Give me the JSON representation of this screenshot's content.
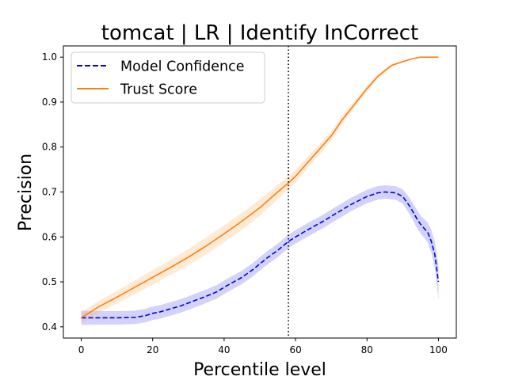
{
  "chart_data": {
    "type": "line",
    "title": "tomcat | LR | Identify InCorrect",
    "xlabel": "Percentile level",
    "ylabel": "Precision",
    "xlim": [
      -5,
      105
    ],
    "ylim": [
      0.375,
      1.025
    ],
    "xticks": [
      0,
      20,
      40,
      60,
      80,
      100
    ],
    "yticks": [
      0.4,
      0.5,
      0.6,
      0.7,
      0.8,
      0.9,
      1.0
    ],
    "xtick_labels": [
      "0",
      "20",
      "40",
      "60",
      "80",
      "100"
    ],
    "ytick_labels": [
      "0.4",
      "0.5",
      "0.6",
      "0.7",
      "0.8",
      "0.9",
      "1.0"
    ],
    "legend_position": "top-left",
    "vline": {
      "x": 58,
      "style": "dotted",
      "color": "#000000"
    },
    "series": [
      {
        "name": "Model Confidence",
        "color": "#0000ee",
        "band_color": "#6b6bee",
        "style": "dashed",
        "x": [
          0,
          5,
          10,
          15,
          18,
          20,
          22,
          25,
          28,
          30,
          33,
          35,
          38,
          40,
          42,
          45,
          48,
          50,
          52,
          55,
          58,
          60,
          63,
          65,
          68,
          70,
          73,
          75,
          78,
          80,
          83,
          85,
          88,
          90,
          92,
          94,
          95,
          97,
          98,
          99,
          100
        ],
        "y": [
          0.42,
          0.42,
          0.42,
          0.421,
          0.425,
          0.43,
          0.433,
          0.44,
          0.447,
          0.453,
          0.462,
          0.468,
          0.478,
          0.488,
          0.497,
          0.51,
          0.527,
          0.54,
          0.553,
          0.57,
          0.59,
          0.6,
          0.614,
          0.623,
          0.636,
          0.646,
          0.66,
          0.67,
          0.682,
          0.69,
          0.698,
          0.7,
          0.698,
          0.69,
          0.668,
          0.64,
          0.628,
          0.61,
          0.59,
          0.56,
          0.5
        ],
        "band_halfwidth": [
          0.016,
          0.015,
          0.015,
          0.015,
          0.015,
          0.015,
          0.015,
          0.015,
          0.015,
          0.015,
          0.015,
          0.015,
          0.015,
          0.015,
          0.015,
          0.015,
          0.015,
          0.015,
          0.015,
          0.015,
          0.015,
          0.015,
          0.015,
          0.015,
          0.015,
          0.015,
          0.015,
          0.015,
          0.015,
          0.015,
          0.015,
          0.015,
          0.015,
          0.016,
          0.018,
          0.02,
          0.02,
          0.022,
          0.025,
          0.03,
          0.04
        ]
      },
      {
        "name": "Trust Score",
        "color": "#ff7f0e",
        "band_color": "#ffbb78",
        "style": "solid",
        "x": [
          0,
          5,
          10,
          15,
          20,
          25,
          30,
          35,
          40,
          45,
          50,
          55,
          58,
          60,
          65,
          70,
          73,
          75,
          78,
          80,
          83,
          85,
          87,
          90,
          93,
          95,
          100
        ],
        "y": [
          0.42,
          0.445,
          0.466,
          0.488,
          0.51,
          0.532,
          0.555,
          0.58,
          0.607,
          0.635,
          0.665,
          0.7,
          0.72,
          0.735,
          0.78,
          0.825,
          0.86,
          0.88,
          0.91,
          0.93,
          0.957,
          0.97,
          0.982,
          0.99,
          0.997,
          1.0,
          1.0
        ],
        "band_halfwidth": [
          0.012,
          0.013,
          0.014,
          0.015,
          0.016,
          0.017,
          0.018,
          0.019,
          0.019,
          0.019,
          0.018,
          0.016,
          0.015,
          0.014,
          0.012,
          0.01,
          0.009,
          0.008,
          0.007,
          0.006,
          0.005,
          0.004,
          0.003,
          0.002,
          0.001,
          0.0,
          0.0
        ]
      }
    ]
  }
}
